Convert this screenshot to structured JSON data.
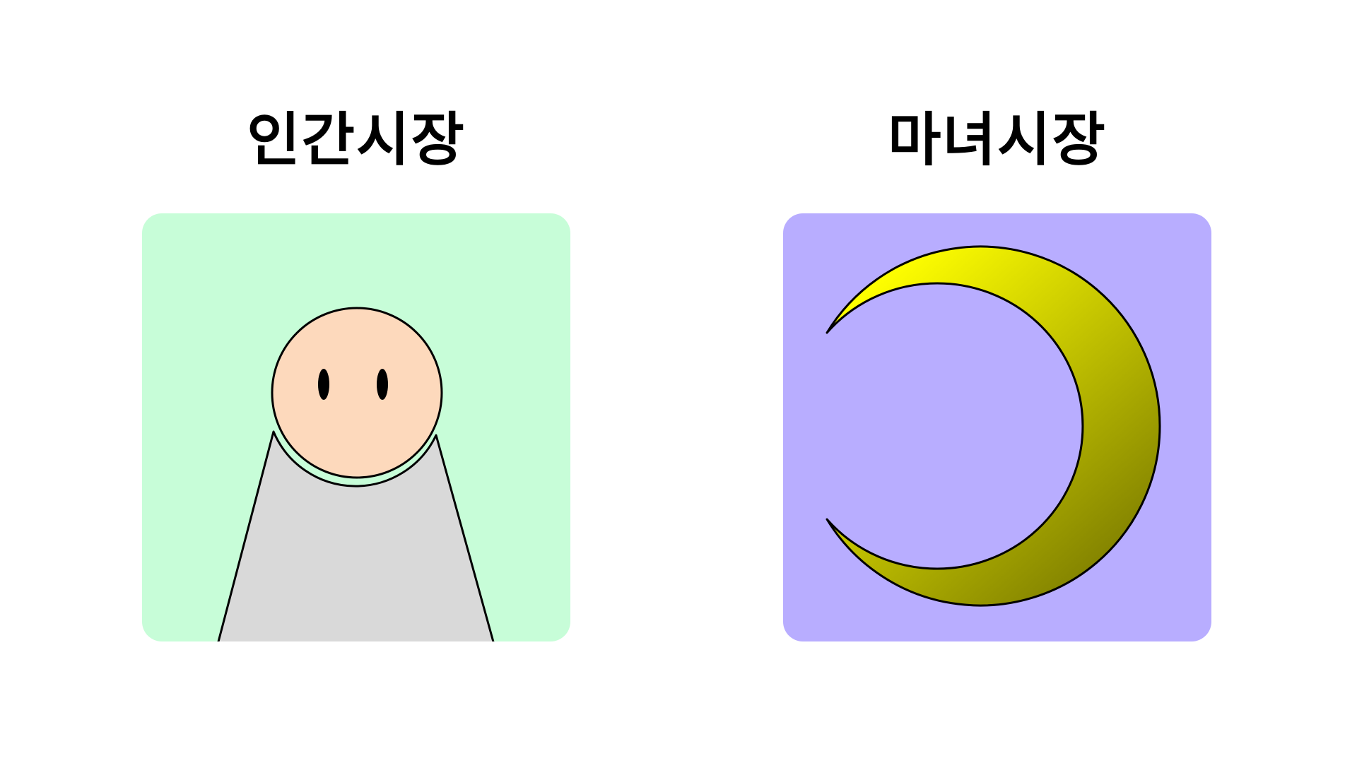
{
  "colors": {
    "page_background": "#ffffff",
    "human_card_background": "#c7fdd8",
    "witch_card_background": "#b8adff",
    "face_fill": "#fdd9bc",
    "body_fill": "#d9d9d9",
    "outline": "#000000",
    "moon_gradient_start": "#ffff00",
    "moon_gradient_end": "#858500"
  },
  "markets": [
    {
      "title": "인간시장",
      "illustration": "person-icon"
    },
    {
      "title": "마녀시장",
      "illustration": "crescent-moon-icon"
    }
  ]
}
